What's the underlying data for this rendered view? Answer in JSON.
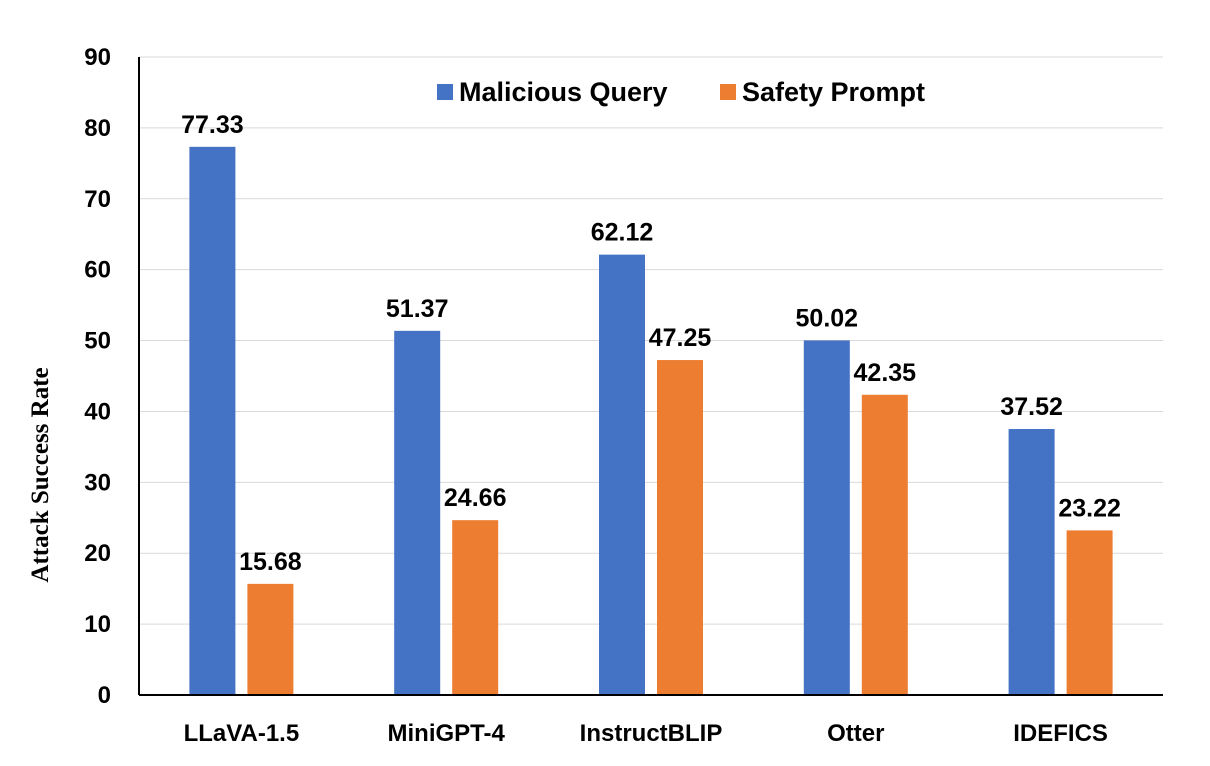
{
  "chart_data": {
    "type": "bar",
    "title": "",
    "xlabel": "",
    "ylabel": "Attack Success Rate",
    "categories": [
      "LLaVA-1.5",
      "MiniGPT-4",
      "InstructBLIP",
      "Otter",
      "IDEFICS"
    ],
    "series": [
      {
        "name": "Malicious Query",
        "color": "#4472C4",
        "values": [
          77.33,
          51.37,
          62.12,
          50.02,
          37.52
        ],
        "labels": [
          "77.33",
          "51.37",
          "62.12",
          "50.02",
          "37.52"
        ]
      },
      {
        "name": "Safety Prompt",
        "color": "#ED7D31",
        "values": [
          15.68,
          24.66,
          47.25,
          42.35,
          23.22
        ],
        "labels": [
          "15.68",
          "24.66",
          "47.25",
          "42.35",
          "23.22"
        ]
      }
    ],
    "ylim": [
      0,
      90
    ],
    "yticks": [
      "0",
      "10",
      "20",
      "30",
      "40",
      "50",
      "60",
      "70",
      "80",
      "90"
    ],
    "grid": true,
    "legend_position": "top"
  }
}
